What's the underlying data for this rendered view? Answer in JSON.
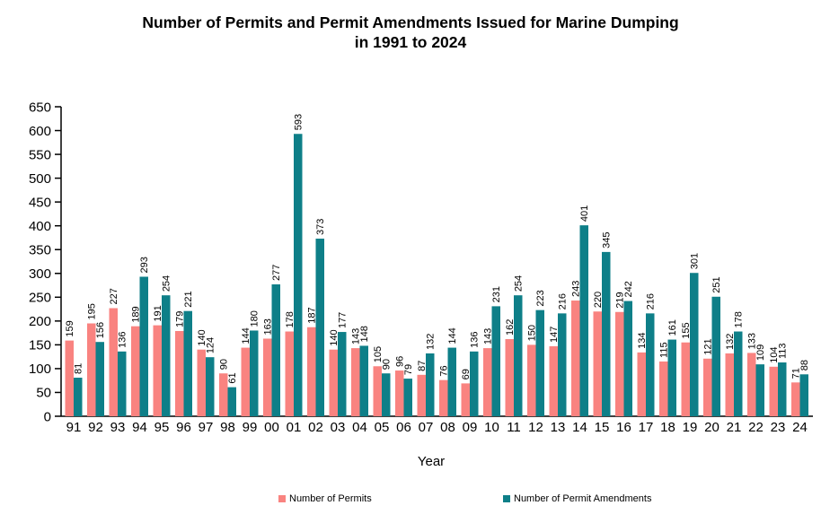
{
  "header": {
    "title_line1": "Number of Permits and Permit Amendments Issued for Marine Dumping",
    "title_line2": "in 1991 to 2024"
  },
  "chart_data": {
    "type": "bar",
    "title": "Number of Permits and Permit Amendments Issued for Marine Dumping in 1991 to 2024",
    "xlabel": "Year",
    "ylabel": "",
    "ylim": [
      0,
      650
    ],
    "ytick_step": 50,
    "grid": false,
    "legend_position": "bottom",
    "bar_value_labels": "rotated-90-above-bars",
    "categories": [
      "91",
      "92",
      "93",
      "94",
      "95",
      "96",
      "97",
      "98",
      "99",
      "00",
      "01",
      "02",
      "03",
      "04",
      "05",
      "06",
      "07",
      "08",
      "09",
      "10",
      "11",
      "12",
      "13",
      "14",
      "15",
      "16",
      "17",
      "18",
      "19",
      "20",
      "21",
      "22",
      "23",
      "24"
    ],
    "series": [
      {
        "name": "Number of Permits",
        "color": "#F98380",
        "values": [
          159,
          195,
          227,
          189,
          191,
          179,
          140,
          90,
          144,
          163,
          178,
          187,
          140,
          143,
          105,
          96,
          87,
          76,
          69,
          143,
          162,
          150,
          147,
          243,
          220,
          219,
          134,
          115,
          155,
          121,
          132,
          133,
          104,
          71
        ]
      },
      {
        "name": "Number of Permit Amendments",
        "color": "#0E7F88",
        "values": [
          81,
          156,
          136,
          293,
          254,
          221,
          124,
          61,
          180,
          277,
          593,
          373,
          177,
          148,
          90,
          79,
          132,
          144,
          136,
          231,
          254,
          223,
          216,
          401,
          345,
          242,
          216,
          161,
          301,
          251,
          178,
          109,
          113,
          88
        ]
      }
    ],
    "axis_color": "#000000",
    "label_color": "#000000"
  }
}
